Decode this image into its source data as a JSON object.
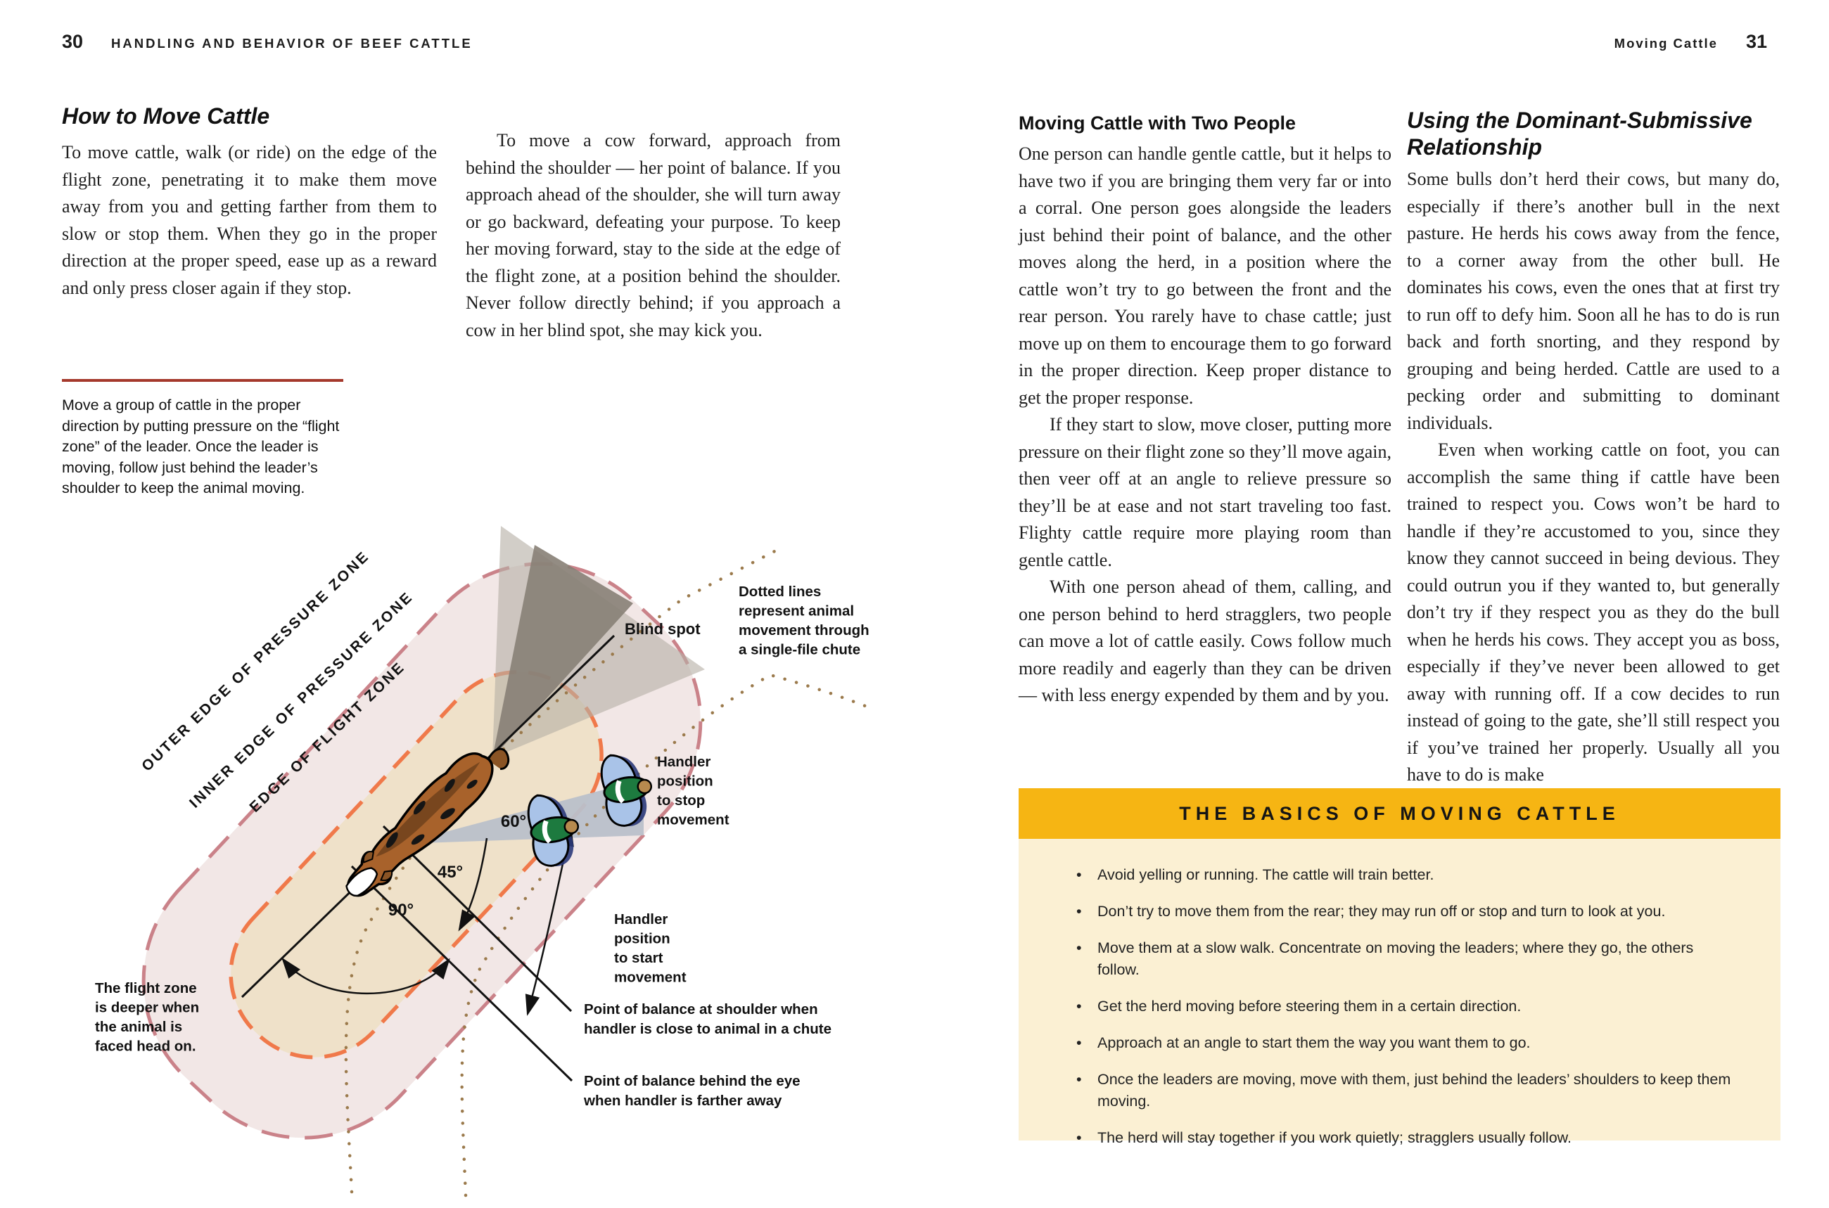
{
  "left_page": {
    "folio": "30",
    "running_head": "HANDLING AND BEHAVIOR OF BEEF CATTLE",
    "section_title": "How to Move Cattle",
    "col1_paragraph": "To move cattle, walk (or ride) on the edge of the flight zone, penetrating it to make them move away from you and getting farther from them to slow or stop them. When they go in the proper direction at the proper speed, ease up as a reward and only press closer again if they stop.",
    "col2_paragraph": "To move a cow forward, approach from behind the shoulder — her point of balance. If you approach ahead of the shoulder, she will turn away or go backward, defeating your purpose. To keep her moving forward, stay to the side at the edge of the flight zone, at a position behind the shoulder. Never follow directly behind; if you approach a cow in her blind spot, she may kick you.",
    "caption": "Move a group of cattle in the proper direction by putting pressure on the “flight zone” of the leader. Once the leader is moving, follow just behind the leader’s shoulder to keep the animal moving."
  },
  "diagram": {
    "zone_label_outer": "OUTER EDGE OF PRESSURE ZONE",
    "zone_label_inner": "INNER EDGE OF PRESSURE ZONE",
    "zone_label_flight": "EDGE OF FLIGHT ZONE",
    "blind_spot": "Blind spot",
    "dotted_note": "Dotted lines\nrepresent animal\nmovement through\na single-file chute",
    "handler_stop": "Handler\nposition\nto stop\nmovement",
    "handler_start": "Handler\nposition\nto start\nmovement",
    "flight_zone_note": "The flight zone\nis deeper when\nthe animal is\nfaced head on.",
    "pob_shoulder": "Point of balance at shoulder when\nhandler is close to animal in a chute",
    "pob_eye": "Point of balance behind the eye\nwhen handler is farther away",
    "angle_60": "60°",
    "angle_45": "45°",
    "angle_90": "90°"
  },
  "right_page": {
    "folio": "31",
    "running_head": "Moving Cattle",
    "col1_heading": "Moving Cattle with Two People",
    "col1_p1": "One person can handle gentle cattle, but it helps to have two if you are bringing them very far or into a corral. One person goes alongside the leaders just behind their point of balance, and the other moves along the herd, in a position where the cattle won’t try to go between the front and the rear person. You rarely have to chase cattle; just move up on them to encourage them to go forward in the proper direction. Keep proper distance to get the proper response.",
    "col1_p2": "If they start to slow, move closer, putting more pressure on their flight zone so they’ll move again, then veer off at an angle to relieve pressure so they’ll be at ease and not start traveling too fast. Flighty cattle require more playing room than gentle cattle.",
    "col1_p3": "With one person ahead of them, calling, and one person behind to herd stragglers, two people can move a lot of cattle easily. Cows follow much more readily and eagerly than they can be driven — with less energy expended by them and by you.",
    "col2_heading": "Using the Dominant-Submissive Relationship",
    "col2_p1": "Some bulls don’t herd their cows, but many do, especially if there’s another bull in the next pasture. He herds his cows away from the fence, to a corner away from the other bull. He dominates his cows, even the ones that at first try to run off to defy him. Soon all he has to do is run back and forth snorting, and they respond by grouping and being herded. Cattle are used to a pecking order and submitting to dominant individuals.",
    "col2_p2": "Even when working cattle on foot, you can accomplish the same thing if cattle have been trained to respect you. Cows won’t be hard to handle if they’re accustomed to you, since they know they cannot succeed in being devious. They could outrun you if they wanted to, but generally don’t try if they respect you as they do the bull when he herds his cows. They accept you as boss, especially if they’ve never been allowed to get away with running off. If a cow decides to run instead of going to the gate, she’ll still respect you if you’ve trained her properly. Usually all you have to do is make"
  },
  "basics_box": {
    "title": "THE BASICS OF MOVING CATTLE",
    "bullet": "•",
    "items": [
      "Avoid yelling or running. The cattle will train better.",
      "Don’t try to move them from the rear; they may run off or stop and turn to look at you.",
      "Move them at a slow walk. Concentrate on moving the leaders; where they go, the others follow.",
      "Get the herd moving before steering them in a certain direction.",
      "Approach at an angle to start them the way you want them to go.",
      "Once the leaders are moving, move with them, just behind the leaders’ shoulders to keep them moving.",
      "The herd will stay together if you work quietly; stragglers usually follow."
    ]
  },
  "colors": {
    "accent_rule": "#a5392c",
    "basics_header": "#f6b513",
    "basics_body": "#fbf0d3",
    "outer_zone_fill": "#f2e7e6",
    "outer_zone_dash": "#ca8289",
    "inner_zone_fill": "#efe1c9",
    "inner_zone_dash": "#f0794a",
    "chute_dots": "#9b7a4c",
    "handler_band": "#b9c0ca",
    "cow_body": "#a8622b"
  }
}
